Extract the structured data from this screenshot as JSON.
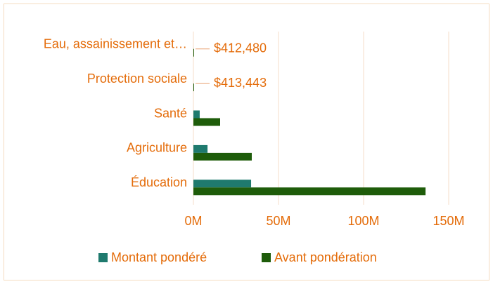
{
  "chart_data": {
    "type": "bar",
    "orientation": "horizontal",
    "categories": [
      "Eau, assainissement et…",
      "Protection sociale",
      "Santé",
      "Agriculture",
      "Éducation"
    ],
    "series": [
      {
        "name": "Montant pondéré",
        "color": "#1f7a6e",
        "values": [
          null,
          null,
          3700000,
          8300000,
          33900000
        ]
      },
      {
        "name": "Avant pondération",
        "color": "#1e5c0a",
        "values": [
          412480,
          413443,
          15700000,
          34300000,
          136400000
        ],
        "value_labels": [
          "$412,480",
          "$413,443",
          null,
          null,
          null
        ]
      }
    ],
    "xlim": [
      0,
      150000000
    ],
    "xticks": [
      {
        "value": 0,
        "label": "0M"
      },
      {
        "value": 50000000,
        "label": "50M"
      },
      {
        "value": 100000000,
        "label": "100M"
      },
      {
        "value": 150000000,
        "label": "150M"
      }
    ],
    "grid": true,
    "legend": "bottom"
  }
}
